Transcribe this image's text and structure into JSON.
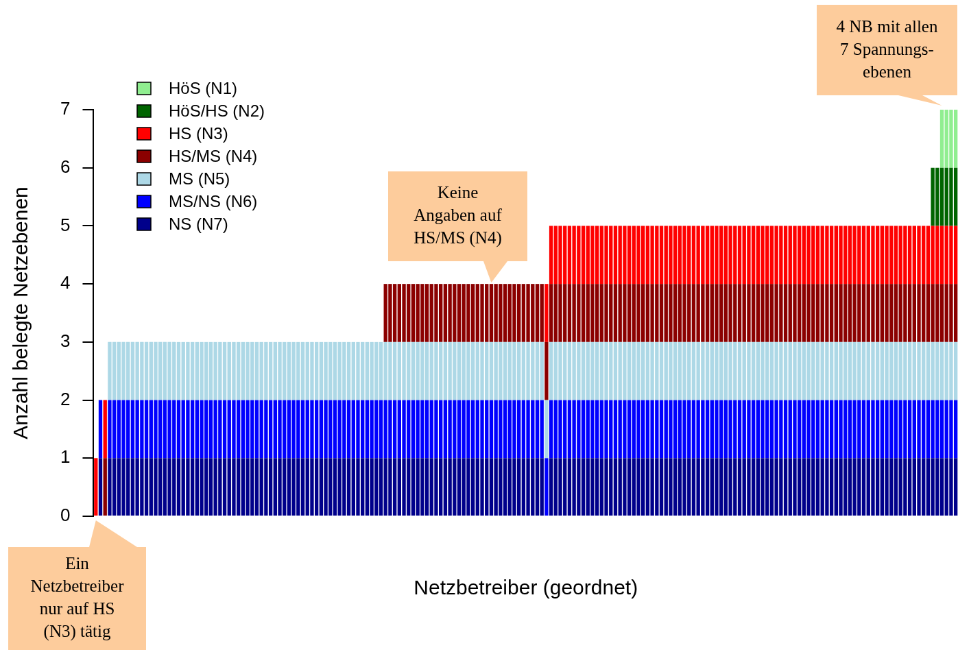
{
  "chart_data": {
    "type": "bar",
    "stacked": true,
    "xlabel": "Netzbetreiber (geordnet)",
    "ylabel": "Anzahl belegte Netzebenen",
    "categories": [
      null,
      null,
      null,
      null,
      null,
      null,
      null,
      null,
      null,
      null,
      null,
      null,
      null,
      null,
      null,
      null,
      null,
      null,
      null,
      null,
      null,
      null,
      null,
      null,
      null,
      null,
      null,
      null,
      null,
      null,
      null,
      null,
      null,
      null,
      null,
      null,
      null,
      null,
      null,
      null,
      null,
      null,
      null,
      null,
      null,
      null,
      null,
      null,
      null,
      null,
      null,
      null,
      null,
      null,
      null,
      null,
      null,
      null,
      null,
      null,
      null,
      null,
      null,
      null,
      null,
      null,
      null,
      null,
      null,
      null,
      null,
      null,
      null,
      null,
      null,
      null,
      null,
      null,
      null,
      null,
      null,
      null,
      null,
      null,
      null,
      null,
      null,
      null,
      null,
      null,
      null,
      null,
      null,
      null,
      null,
      null,
      null,
      null,
      null,
      null,
      null,
      null,
      null,
      null,
      null,
      null,
      null,
      null,
      null,
      null,
      null,
      null,
      null,
      null,
      null,
      null,
      null,
      null,
      null,
      null,
      null,
      null,
      null,
      null,
      null,
      null,
      null,
      null,
      null,
      null,
      null,
      null,
      null,
      null,
      null,
      null,
      null,
      null,
      null,
      null,
      null,
      null,
      null,
      null,
      null,
      null,
      null,
      null,
      null,
      null,
      null,
      null,
      null,
      null,
      null,
      null,
      null,
      null,
      null,
      null,
      null,
      null,
      null,
      null,
      null,
      null,
      null,
      null,
      null,
      null,
      null,
      null,
      null,
      null,
      null,
      null,
      null,
      null,
      null,
      null,
      null,
      null,
      null,
      null,
      null,
      null,
      null,
      null
    ],
    "series": [
      {
        "name": "NS (N7)",
        "color": "#00008b",
        "values": [
          null,
          1,
          null,
          1,
          1,
          1,
          1,
          1,
          1,
          1,
          1,
          1,
          1,
          1,
          1,
          1,
          1,
          1,
          1,
          1,
          1,
          1,
          1,
          1,
          1,
          1,
          1,
          1,
          1,
          1,
          1,
          1,
          1,
          1,
          1,
          1,
          1,
          1,
          1,
          1,
          1,
          1,
          1,
          1,
          1,
          1,
          1,
          1,
          1,
          1,
          1,
          1,
          1,
          1,
          1,
          1,
          1,
          1,
          1,
          1,
          1,
          1,
          1,
          1,
          1,
          1,
          1,
          1,
          1,
          1,
          1,
          1,
          1,
          1,
          1,
          1,
          1,
          1,
          1,
          1,
          1,
          1,
          1,
          1,
          1,
          1,
          1,
          1,
          1,
          1,
          1,
          1,
          1,
          1,
          1,
          1,
          1,
          1,
          null,
          1,
          1,
          1,
          1,
          1,
          1,
          1,
          1,
          1,
          1,
          1,
          1,
          1,
          1,
          1,
          1,
          1,
          1,
          1,
          1,
          1,
          1,
          1,
          1,
          1,
          1,
          1,
          1,
          1,
          1,
          1,
          1,
          1,
          1,
          1,
          1,
          1,
          1,
          1,
          1,
          1,
          1,
          1,
          1,
          1,
          1,
          1,
          1,
          1,
          1,
          1,
          1,
          1,
          1,
          1,
          1,
          1,
          1,
          1,
          1,
          1,
          1,
          1,
          1,
          1,
          1,
          1,
          1,
          1,
          1,
          1,
          1,
          1,
          1,
          1,
          1,
          1,
          1,
          1,
          1,
          1,
          1,
          1,
          1,
          1,
          1,
          1,
          1,
          1
        ]
      },
      {
        "name": "MS/NS (N6)",
        "color": "#0000ff",
        "values": [
          null,
          1,
          null,
          1,
          1,
          1,
          1,
          1,
          1,
          1,
          1,
          1,
          1,
          1,
          1,
          1,
          1,
          1,
          1,
          1,
          1,
          1,
          1,
          1,
          1,
          1,
          1,
          1,
          1,
          1,
          1,
          1,
          1,
          1,
          1,
          1,
          1,
          1,
          1,
          1,
          1,
          1,
          1,
          1,
          1,
          1,
          1,
          1,
          1,
          1,
          1,
          1,
          1,
          1,
          1,
          1,
          1,
          1,
          1,
          1,
          1,
          1,
          1,
          1,
          1,
          1,
          1,
          1,
          1,
          1,
          1,
          1,
          1,
          1,
          1,
          1,
          1,
          1,
          1,
          1,
          1,
          1,
          1,
          1,
          1,
          1,
          1,
          1,
          1,
          1,
          1,
          1,
          1,
          1,
          1,
          1,
          1,
          1,
          1,
          1,
          1,
          1,
          1,
          1,
          1,
          1,
          1,
          1,
          1,
          1,
          1,
          1,
          1,
          1,
          1,
          1,
          1,
          1,
          1,
          1,
          1,
          1,
          1,
          1,
          1,
          1,
          1,
          1,
          1,
          1,
          1,
          1,
          1,
          1,
          1,
          1,
          1,
          1,
          1,
          1,
          1,
          1,
          1,
          1,
          1,
          1,
          1,
          1,
          1,
          1,
          1,
          1,
          1,
          1,
          1,
          1,
          1,
          1,
          1,
          1,
          1,
          1,
          1,
          1,
          1,
          1,
          1,
          1,
          1,
          1,
          1,
          1,
          1,
          1,
          1,
          1,
          1,
          1,
          1,
          1,
          1,
          1,
          1,
          1,
          1,
          1,
          1,
          1
        ]
      },
      {
        "name": "MS (N5)",
        "color": "#add8e6",
        "values": [
          null,
          null,
          null,
          1,
          1,
          1,
          1,
          1,
          1,
          1,
          1,
          1,
          1,
          1,
          1,
          1,
          1,
          1,
          1,
          1,
          1,
          1,
          1,
          1,
          1,
          1,
          1,
          1,
          1,
          1,
          1,
          1,
          1,
          1,
          1,
          1,
          1,
          1,
          1,
          1,
          1,
          1,
          1,
          1,
          1,
          1,
          1,
          1,
          1,
          1,
          1,
          1,
          1,
          1,
          1,
          1,
          1,
          1,
          1,
          1,
          1,
          1,
          1,
          1,
          1,
          1,
          1,
          1,
          1,
          1,
          1,
          1,
          1,
          1,
          1,
          1,
          1,
          1,
          1,
          1,
          1,
          1,
          1,
          1,
          1,
          1,
          1,
          1,
          1,
          1,
          1,
          1,
          1,
          1,
          1,
          1,
          1,
          1,
          1,
          1,
          1,
          1,
          1,
          1,
          1,
          1,
          1,
          1,
          1,
          1,
          1,
          1,
          1,
          1,
          1,
          1,
          1,
          1,
          1,
          1,
          1,
          1,
          1,
          1,
          1,
          1,
          1,
          1,
          1,
          1,
          1,
          1,
          1,
          1,
          1,
          1,
          1,
          1,
          1,
          1,
          1,
          1,
          1,
          1,
          1,
          1,
          1,
          1,
          1,
          1,
          1,
          1,
          1,
          1,
          1,
          1,
          1,
          1,
          1,
          1,
          1,
          1,
          1,
          1,
          1,
          1,
          1,
          1,
          1,
          1,
          1,
          1,
          1,
          1,
          1,
          1,
          1,
          1,
          1,
          1,
          1,
          1,
          1,
          1,
          1,
          1,
          1,
          1
        ]
      },
      {
        "name": "HS/MS (N4)",
        "color": "#8b0000",
        "values": [
          null,
          null,
          1,
          null,
          null,
          null,
          null,
          null,
          null,
          null,
          null,
          null,
          null,
          null,
          null,
          null,
          null,
          null,
          null,
          null,
          null,
          null,
          null,
          null,
          null,
          null,
          null,
          null,
          null,
          null,
          null,
          null,
          null,
          null,
          null,
          null,
          null,
          null,
          null,
          null,
          null,
          null,
          null,
          null,
          null,
          null,
          null,
          null,
          null,
          null,
          null,
          null,
          null,
          null,
          null,
          null,
          null,
          null,
          null,
          null,
          null,
          null,
          null,
          1,
          1,
          1,
          1,
          1,
          1,
          1,
          1,
          1,
          1,
          1,
          1,
          1,
          1,
          1,
          1,
          1,
          1,
          1,
          1,
          1,
          1,
          1,
          1,
          1,
          1,
          1,
          1,
          1,
          1,
          1,
          1,
          1,
          1,
          1,
          1,
          1,
          1,
          1,
          1,
          1,
          1,
          1,
          1,
          1,
          1,
          1,
          1,
          1,
          1,
          1,
          1,
          1,
          1,
          1,
          1,
          1,
          1,
          1,
          1,
          1,
          1,
          1,
          1,
          1,
          1,
          1,
          1,
          1,
          1,
          1,
          1,
          1,
          1,
          1,
          1,
          1,
          1,
          1,
          1,
          1,
          1,
          1,
          1,
          1,
          1,
          1,
          1,
          1,
          1,
          1,
          1,
          1,
          1,
          1,
          1,
          1,
          1,
          1,
          1,
          1,
          1,
          1,
          1,
          1,
          1,
          1,
          1,
          1,
          1,
          1,
          1,
          1,
          1,
          1,
          1,
          1,
          1,
          1,
          1,
          1,
          1,
          1,
          1,
          1
        ]
      },
      {
        "name": "HS (N3)",
        "color": "#ff0000",
        "values": [
          1,
          null,
          1,
          null,
          null,
          null,
          null,
          null,
          null,
          null,
          null,
          null,
          null,
          null,
          null,
          null,
          null,
          null,
          null,
          null,
          null,
          null,
          null,
          null,
          null,
          null,
          null,
          null,
          null,
          null,
          null,
          null,
          null,
          null,
          null,
          null,
          null,
          null,
          null,
          null,
          null,
          null,
          null,
          null,
          null,
          null,
          null,
          null,
          null,
          null,
          null,
          null,
          null,
          null,
          null,
          null,
          null,
          null,
          null,
          null,
          null,
          null,
          null,
          null,
          null,
          null,
          null,
          null,
          null,
          null,
          null,
          null,
          null,
          null,
          null,
          null,
          null,
          null,
          null,
          null,
          null,
          null,
          null,
          null,
          null,
          null,
          null,
          null,
          null,
          null,
          null,
          null,
          null,
          null,
          null,
          null,
          null,
          null,
          1,
          1,
          1,
          1,
          1,
          1,
          1,
          1,
          1,
          1,
          1,
          1,
          1,
          1,
          1,
          1,
          1,
          1,
          1,
          1,
          1,
          1,
          1,
          1,
          1,
          1,
          1,
          1,
          1,
          1,
          1,
          1,
          1,
          1,
          1,
          1,
          1,
          1,
          1,
          1,
          1,
          1,
          1,
          1,
          1,
          1,
          1,
          1,
          1,
          1,
          1,
          1,
          1,
          1,
          1,
          1,
          1,
          1,
          1,
          1,
          1,
          1,
          1,
          1,
          1,
          1,
          1,
          1,
          1,
          1,
          1,
          1,
          1,
          1,
          1,
          1,
          1,
          1,
          1,
          1,
          1,
          1,
          1,
          1,
          1,
          1,
          1,
          1,
          1,
          1
        ]
      },
      {
        "name": "HöS/HS (N2)",
        "color": "#006400",
        "values": [
          null,
          null,
          null,
          null,
          null,
          null,
          null,
          null,
          null,
          null,
          null,
          null,
          null,
          null,
          null,
          null,
          null,
          null,
          null,
          null,
          null,
          null,
          null,
          null,
          null,
          null,
          null,
          null,
          null,
          null,
          null,
          null,
          null,
          null,
          null,
          null,
          null,
          null,
          null,
          null,
          null,
          null,
          null,
          null,
          null,
          null,
          null,
          null,
          null,
          null,
          null,
          null,
          null,
          null,
          null,
          null,
          null,
          null,
          null,
          null,
          null,
          null,
          null,
          null,
          null,
          null,
          null,
          null,
          null,
          null,
          null,
          null,
          null,
          null,
          null,
          null,
          null,
          null,
          null,
          null,
          null,
          null,
          null,
          null,
          null,
          null,
          null,
          null,
          null,
          null,
          null,
          null,
          null,
          null,
          null,
          null,
          null,
          null,
          null,
          null,
          null,
          null,
          null,
          null,
          null,
          null,
          null,
          null,
          null,
          null,
          null,
          null,
          null,
          null,
          null,
          null,
          null,
          null,
          null,
          null,
          null,
          null,
          null,
          null,
          null,
          null,
          null,
          null,
          null,
          null,
          null,
          null,
          null,
          null,
          null,
          null,
          null,
          null,
          null,
          null,
          null,
          null,
          null,
          null,
          null,
          null,
          null,
          null,
          null,
          null,
          null,
          null,
          null,
          null,
          null,
          null,
          null,
          null,
          null,
          null,
          null,
          null,
          null,
          null,
          null,
          null,
          null,
          null,
          null,
          null,
          null,
          null,
          null,
          null,
          null,
          null,
          null,
          null,
          null,
          null,
          null,
          null,
          1,
          1,
          1,
          1,
          1,
          1
        ]
      },
      {
        "name": "HöS (N1)",
        "color": "#90ee90",
        "values": [
          null,
          null,
          null,
          null,
          null,
          null,
          null,
          null,
          null,
          null,
          null,
          null,
          null,
          null,
          null,
          null,
          null,
          null,
          null,
          null,
          null,
          null,
          null,
          null,
          null,
          null,
          null,
          null,
          null,
          null,
          null,
          null,
          null,
          null,
          null,
          null,
          null,
          null,
          null,
          null,
          null,
          null,
          null,
          null,
          null,
          null,
          null,
          null,
          null,
          null,
          null,
          null,
          null,
          null,
          null,
          null,
          null,
          null,
          null,
          null,
          null,
          null,
          null,
          null,
          null,
          null,
          null,
          null,
          null,
          null,
          null,
          null,
          null,
          null,
          null,
          null,
          null,
          null,
          null,
          null,
          null,
          null,
          null,
          null,
          null,
          null,
          null,
          null,
          null,
          null,
          null,
          null,
          null,
          null,
          null,
          null,
          null,
          null,
          null,
          null,
          null,
          null,
          null,
          null,
          null,
          null,
          null,
          null,
          null,
          null,
          null,
          null,
          null,
          null,
          null,
          null,
          null,
          null,
          null,
          null,
          null,
          null,
          null,
          null,
          null,
          null,
          null,
          null,
          null,
          null,
          null,
          null,
          null,
          null,
          null,
          null,
          null,
          null,
          null,
          null,
          null,
          null,
          null,
          null,
          null,
          null,
          null,
          null,
          null,
          null,
          null,
          null,
          null,
          null,
          null,
          null,
          null,
          null,
          null,
          null,
          null,
          null,
          null,
          null,
          null,
          null,
          null,
          null,
          null,
          null,
          null,
          null,
          null,
          null,
          null,
          null,
          null,
          null,
          null,
          null,
          null,
          null,
          null,
          null,
          1,
          1,
          1,
          1
        ]
      }
    ],
    "ylim": [
      0,
      7
    ],
    "yticks": [
      0,
      1,
      2,
      3,
      4,
      5,
      6,
      7
    ],
    "tick_labels": "y",
    "legend": "top left",
    "annotations": [
      "Ein Netzbetreiber nur auf HS (N3) tätig",
      "Keine Angaben auf HS/MS (N4)",
      "4 NB mit allen 7 Spannungs-ebenen"
    ]
  }
}
